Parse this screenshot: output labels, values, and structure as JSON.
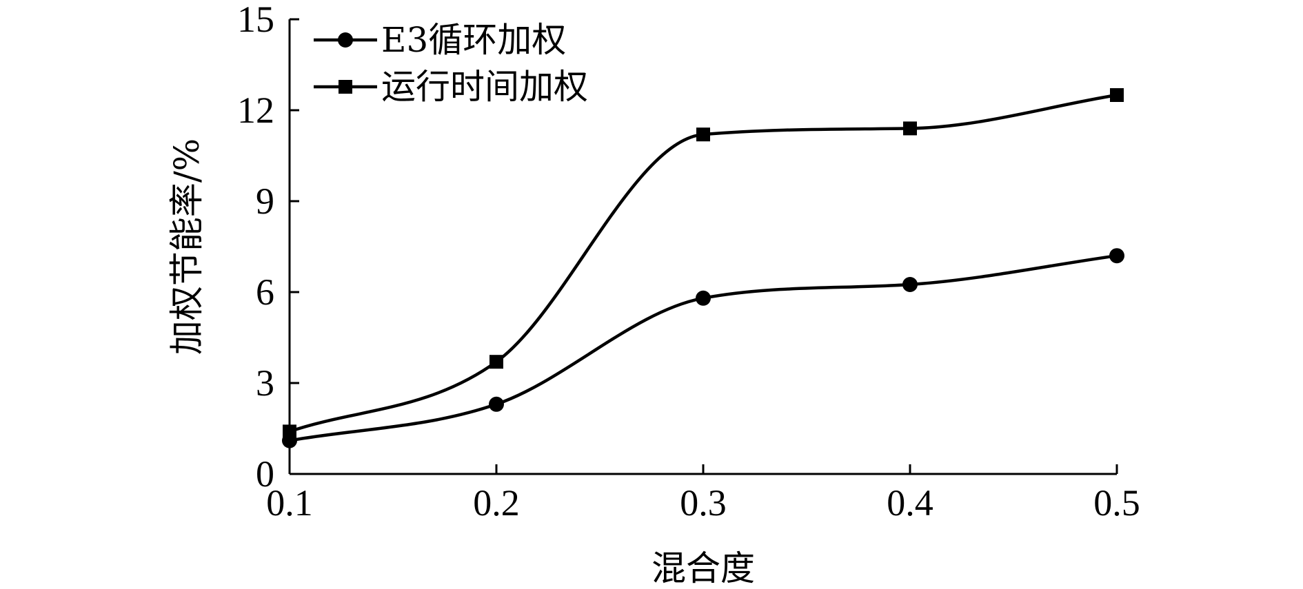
{
  "chart_data": {
    "type": "line",
    "title": "",
    "xlabel": "混合度",
    "ylabel": "加权节能率/%",
    "x": [
      0.1,
      0.2,
      0.3,
      0.4,
      0.5
    ],
    "x_tick_labels": [
      "0.1",
      "0.2",
      "0.3",
      "0.4",
      "0.5"
    ],
    "y_ticks": [
      0,
      3,
      6,
      9,
      12,
      15
    ],
    "y_tick_labels": [
      "0",
      "3",
      "6",
      "9",
      "12",
      "15"
    ],
    "xlim": [
      0.1,
      0.5
    ],
    "ylim": [
      0,
      15
    ],
    "grid": false,
    "legend_position": "top-left",
    "smooth": true,
    "series": [
      {
        "name": "E3循环加权",
        "marker": "circle",
        "color": "#000000",
        "values": [
          1.1,
          2.3,
          5.8,
          6.25,
          7.2
        ]
      },
      {
        "name": "运行时间加权",
        "marker": "square",
        "color": "#000000",
        "values": [
          1.4,
          3.7,
          11.2,
          11.4,
          12.5
        ]
      }
    ]
  }
}
